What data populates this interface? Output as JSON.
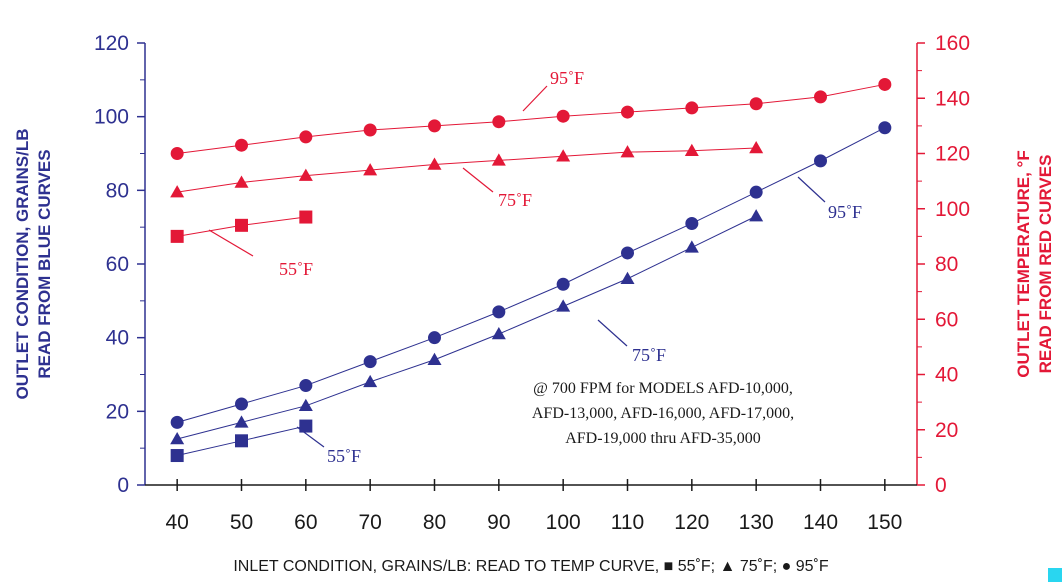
{
  "chart_data": {
    "type": "line",
    "xlabel": "INLET CONDITION, GRAINS/LB: READ TO TEMP CURVE, ■ 55˚F; ▲ 75˚F; ● 95˚F",
    "ylabel_left_line1": "OUTLET CONDITION, GRAINS/LB",
    "ylabel_left_line2": "READ FROM BLUE CURVES",
    "ylabel_right_line1": "OUTLET TEMPERATURE, °F",
    "ylabel_right_line2": "READ FROM RED CURVES",
    "xlim": [
      35,
      155
    ],
    "ylim_left": [
      0,
      120
    ],
    "ylim_right": [
      0,
      160
    ],
    "x_ticks": [
      40,
      50,
      60,
      70,
      80,
      90,
      100,
      110,
      120,
      130,
      140,
      150
    ],
    "y_left_ticks": [
      0,
      20,
      40,
      60,
      80,
      100,
      120
    ],
    "y_right_ticks": [
      0,
      20,
      40,
      60,
      80,
      100,
      120,
      140,
      160
    ],
    "colors": {
      "blue": "#2e3190",
      "red": "#e31837",
      "accent": "#29d6f0"
    },
    "note_lines": [
      "@ 700 FPM for MODELS AFD-10,000,",
      "AFD-13,000, AFD-16,000, AFD-17,000,",
      "AFD-19,000 thru AFD-35,000"
    ],
    "series": [
      {
        "label": "95˚F",
        "color": "red",
        "axis": "right",
        "marker": "circle",
        "x": [
          40,
          50,
          60,
          70,
          80,
          90,
          100,
          110,
          120,
          130,
          140,
          150
        ],
        "y": [
          120,
          123,
          126,
          128.5,
          130,
          131.5,
          133.5,
          135,
          136.5,
          138,
          140.5,
          145
        ]
      },
      {
        "label": "75˚F",
        "color": "red",
        "axis": "right",
        "marker": "triangle",
        "x": [
          40,
          50,
          60,
          70,
          80,
          90,
          100,
          110,
          120,
          130
        ],
        "y": [
          106,
          109.5,
          112,
          114,
          116,
          117.5,
          119,
          120.5,
          121,
          122
        ]
      },
      {
        "label": "55˚F",
        "color": "red",
        "axis": "right",
        "marker": "square",
        "x": [
          40,
          50,
          60
        ],
        "y": [
          90,
          94,
          97
        ]
      },
      {
        "label": "95˚F",
        "color": "blue",
        "axis": "left",
        "marker": "circle",
        "x": [
          40,
          50,
          60,
          70,
          80,
          90,
          100,
          110,
          120,
          130,
          140,
          150
        ],
        "y": [
          17,
          22,
          27,
          33.5,
          40,
          47,
          54.5,
          63,
          71,
          79.5,
          88,
          97
        ]
      },
      {
        "label": "75˚F",
        "color": "blue",
        "axis": "left",
        "marker": "triangle",
        "x": [
          40,
          50,
          60,
          70,
          80,
          90,
          100,
          110,
          120,
          130
        ],
        "y": [
          12.5,
          17,
          21.5,
          28,
          34,
          41,
          48.5,
          56,
          64.5,
          73
        ]
      },
      {
        "label": "55˚F",
        "color": "blue",
        "axis": "left",
        "marker": "square",
        "x": [
          40,
          50,
          60
        ],
        "y": [
          8,
          12,
          16
        ]
      }
    ]
  }
}
